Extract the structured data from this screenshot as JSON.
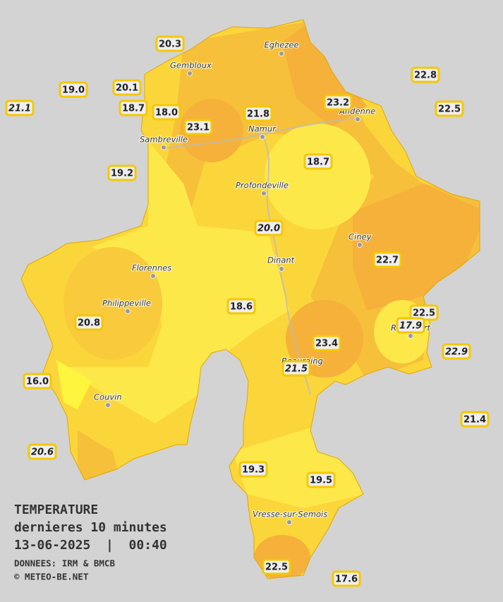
{
  "header": {
    "title": "TEMPERATURE",
    "subtitle": "dernieres 10 minutes",
    "datetime": "13-06-2025  |  00:40",
    "source": "DONNEES: IRM & BMCB",
    "credit": "© METEO-BE.NET"
  },
  "towns": [
    {
      "label": "Eghezee"
    },
    {
      "label": "Gembloux"
    },
    {
      "label": "Andenne"
    },
    {
      "label": "Namur"
    },
    {
      "label": "Sambreville"
    },
    {
      "label": "Profondeville"
    },
    {
      "label": "Ciney"
    },
    {
      "label": "Dinant"
    },
    {
      "label": "Florennes"
    },
    {
      "label": "Philippeville"
    },
    {
      "label": "Rochefort"
    },
    {
      "label": "Beauraing"
    },
    {
      "label": "Couvin"
    },
    {
      "label": "Vresse-sur-Semois"
    }
  ],
  "stations": [
    {
      "label": "20.3",
      "italic": false
    },
    {
      "label": "19.0",
      "italic": false
    },
    {
      "label": "20.1",
      "italic": false
    },
    {
      "label": "21.1",
      "italic": true
    },
    {
      "label": "18.7",
      "italic": false
    },
    {
      "label": "18.0",
      "italic": false
    },
    {
      "label": "23.1",
      "italic": false
    },
    {
      "label": "21.8",
      "italic": false
    },
    {
      "label": "23.2",
      "italic": false
    },
    {
      "label": "22.8",
      "italic": false
    },
    {
      "label": "22.5",
      "italic": false
    },
    {
      "label": "19.2",
      "italic": false
    },
    {
      "label": "18.7",
      "italic": false
    },
    {
      "label": "20.0",
      "italic": true
    },
    {
      "label": "22.7",
      "italic": false
    },
    {
      "label": "18.6",
      "italic": false
    },
    {
      "label": "22.5",
      "italic": false
    },
    {
      "label": "17.9",
      "italic": true
    },
    {
      "label": "20.8",
      "italic": false
    },
    {
      "label": "23.4",
      "italic": false
    },
    {
      "label": "22.9",
      "italic": true
    },
    {
      "label": "21.5",
      "italic": true
    },
    {
      "label": "16.0",
      "italic": false
    },
    {
      "label": "21.4",
      "italic": false
    },
    {
      "label": "20.6",
      "italic": true
    },
    {
      "label": "19.3",
      "italic": false
    },
    {
      "label": "19.5",
      "italic": false
    },
    {
      "label": "22.5",
      "italic": false
    },
    {
      "label": "17.6",
      "italic": false
    }
  ]
}
